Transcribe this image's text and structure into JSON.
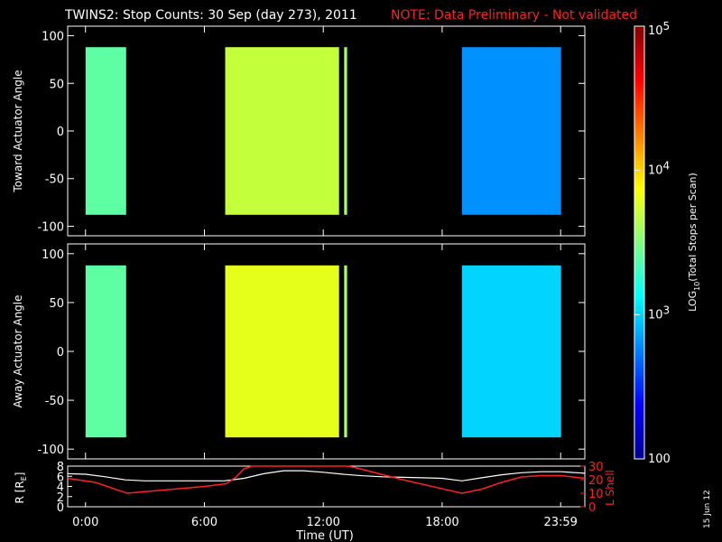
{
  "header": {
    "title": "TWINS2: Stop Counts: 30 Sep (day 273), 2011",
    "note": "NOTE: Data Preliminary - Not validated"
  },
  "date_stamp": "15 Jun 12",
  "colors": {
    "background": "#000000",
    "note_red": "#ff2020",
    "r_line": "#ffffff",
    "lshell_line": "#ff2020"
  },
  "chart_data": [
    {
      "type": "heatmap",
      "title": "TWINS2: Stop Counts: 30 Sep (day 273), 2011",
      "ylabel": "Toward Actuator Angle",
      "ylim": [
        -110,
        110
      ],
      "yticks": [
        100,
        50,
        0,
        -50,
        -100
      ],
      "data_y_range": [
        -88,
        88
      ],
      "xlim": [
        -0.9,
        25.2
      ],
      "color_scale": "log",
      "data_segments": [
        {
          "start": 0.0,
          "end": 2.05,
          "mean_log_counts": 3.4
        },
        {
          "start": 7.05,
          "end": 12.8,
          "mean_log_counts": 3.7
        },
        {
          "start": 13.05,
          "end": 13.2,
          "mean_log_counts": 3.6
        },
        {
          "start": 19.0,
          "end": 24.0,
          "mean_log_counts": 2.8
        }
      ]
    },
    {
      "type": "heatmap",
      "ylabel": "Away Actuator Angle",
      "ylim": [
        -110,
        110
      ],
      "yticks": [
        100,
        50,
        0,
        -50,
        -100
      ],
      "data_y_range": [
        -88,
        88
      ],
      "xlim": [
        -0.9,
        25.2
      ],
      "color_scale": "log",
      "data_segments": [
        {
          "start": 0.0,
          "end": 2.05,
          "mean_log_counts": 3.4
        },
        {
          "start": 7.05,
          "end": 12.8,
          "mean_log_counts": 3.8
        },
        {
          "start": 13.05,
          "end": 13.2,
          "mean_log_counts": 3.6
        },
        {
          "start": 19.0,
          "end": 24.0,
          "mean_log_counts": 3.0
        }
      ]
    },
    {
      "type": "line",
      "xlabel": "Time (UT)",
      "ylabel": "R [R",
      "ylabel_sub": "E",
      "ylabel_end": "]",
      "ylim": [
        0,
        8
      ],
      "yticks": [
        "8",
        "6",
        "4",
        "2",
        "0"
      ],
      "y2label": "L Shell",
      "y2lim": [
        0,
        30
      ],
      "y2ticks": [
        "30",
        "20",
        "10",
        "0"
      ],
      "xlim": [
        -0.9,
        25.2
      ],
      "xticks": [
        0,
        6,
        12,
        18,
        23.98
      ],
      "xticklabels": [
        "0:00",
        "6:00",
        "12:00",
        "18:00",
        "23:59"
      ],
      "series": [
        {
          "axis": "left",
          "x": [
            -0.9,
            0.0,
            1.0,
            2.0,
            3.0,
            4.0,
            5.0,
            6.0,
            7.0,
            8.0,
            9.0,
            10.0,
            11.0,
            12.0,
            13.0,
            14.0,
            15.0,
            16.0,
            17.0,
            18.0,
            19.0,
            20.0,
            21.0,
            22.0,
            23.0,
            24.0,
            25.2
          ],
          "y": [
            6.5,
            6.4,
            5.9,
            5.3,
            5.1,
            5.1,
            5.1,
            5.1,
            5.1,
            5.6,
            6.5,
            7.1,
            7.1,
            6.8,
            6.4,
            6.1,
            5.9,
            5.8,
            5.7,
            5.6,
            5.1,
            5.7,
            6.3,
            6.7,
            6.9,
            6.9,
            6.6
          ]
        },
        {
          "axis": "right",
          "x": [
            -0.9,
            0.5,
            2.1,
            6.0,
            7.1,
            7.6,
            8.0,
            8.4,
            13.2,
            13.6,
            16.0,
            19.0,
            20.0,
            21.0,
            22.0,
            23.0,
            24.0,
            25.2
          ],
          "y": [
            21,
            18,
            10,
            15,
            17,
            22,
            28,
            32,
            32,
            29,
            20,
            10,
            13,
            18,
            22,
            23,
            23,
            21
          ]
        }
      ]
    }
  ],
  "colorbar": {
    "label_pre": "LOG",
    "label_sub": "10",
    "label_post": "(Total Stops per Scan)",
    "scale": "log",
    "range": [
      100,
      100000
    ],
    "ticks": [
      {
        "value": 100000,
        "base": "10",
        "exp": "5"
      },
      {
        "value": 10000,
        "base": "10",
        "exp": "4"
      },
      {
        "value": 1000,
        "base": "10",
        "exp": "3"
      },
      {
        "value": 100,
        "base": "100",
        "exp": ""
      }
    ]
  }
}
